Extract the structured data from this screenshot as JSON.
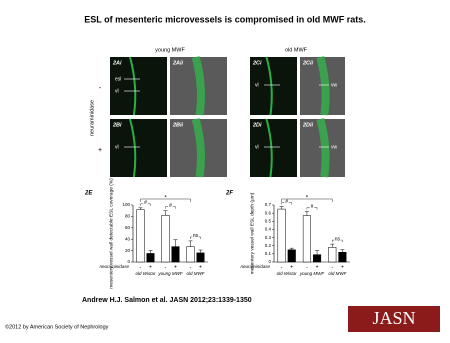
{
  "title": "ESL of mesenteric microvessels is compromised in old MWF rats.",
  "figure": {
    "column_headers": [
      "young MWF",
      "old MWF"
    ],
    "row_labels": [
      "-",
      "+"
    ],
    "row_axis_label": "neuraminidase",
    "panels": [
      {
        "label": "2Ai",
        "annotations": [
          "esl",
          "vl"
        ]
      },
      {
        "label": "2Aii"
      },
      {
        "label": "2Ci",
        "annotations": [
          "vl"
        ]
      },
      {
        "label": "2Cii",
        "annotations": [
          "vw"
        ]
      },
      {
        "label": "2Bi",
        "annotations": [
          "vl"
        ]
      },
      {
        "label": "2Bii"
      },
      {
        "label": "2Di",
        "annotations": [
          "vl"
        ]
      },
      {
        "label": "2Dii",
        "annotations": [
          "vw"
        ]
      }
    ]
  },
  "chart_data": [
    {
      "type": "bar",
      "panel_label": "2E",
      "y_label": "mesentery vessel wall detectable ESL coverage (%)",
      "categories": [
        "old Wistar",
        "young MWF",
        "old MWF"
      ],
      "x_row_label": "neuraminidase",
      "series": [
        {
          "name": "-",
          "color": "#ffffff",
          "values": [
            92,
            82,
            27
          ],
          "errors": [
            3,
            8,
            10
          ]
        },
        {
          "name": "+",
          "color": "#000000",
          "values": [
            15,
            27,
            16
          ],
          "errors": [
            5,
            12,
            5
          ]
        }
      ],
      "ylim": [
        0,
        100
      ],
      "yticks": [
        0,
        20,
        40,
        60,
        80,
        100
      ],
      "annotations": [
        "#",
        "#",
        "ns",
        "*"
      ]
    },
    {
      "type": "bar",
      "panel_label": "2F",
      "y_label": "mesentery vessel wall ESL depth (µm)",
      "categories": [
        "old Wistar",
        "young MWF",
        "old MWF"
      ],
      "x_row_label": "neuraminidase",
      "series": [
        {
          "name": "-",
          "color": "#ffffff",
          "values": [
            0.65,
            0.57,
            0.18
          ],
          "errors": [
            0.03,
            0.05,
            0.04
          ]
        },
        {
          "name": "+",
          "color": "#000000",
          "values": [
            0.15,
            0.09,
            0.12
          ],
          "errors": [
            0.02,
            0.05,
            0.03
          ]
        }
      ],
      "ylim": [
        0,
        0.7
      ],
      "yticks": [
        0,
        0.1,
        0.2,
        0.3,
        0.4,
        0.5,
        0.6,
        0.7
      ],
      "annotations": [
        "#",
        "#",
        "ns",
        "*"
      ]
    }
  ],
  "citation": "Andrew H.J. Salmon et al. JASN 2012;23:1339-1350",
  "copyright": "©2012 by American Society of Nephrology",
  "logo": "JASN"
}
